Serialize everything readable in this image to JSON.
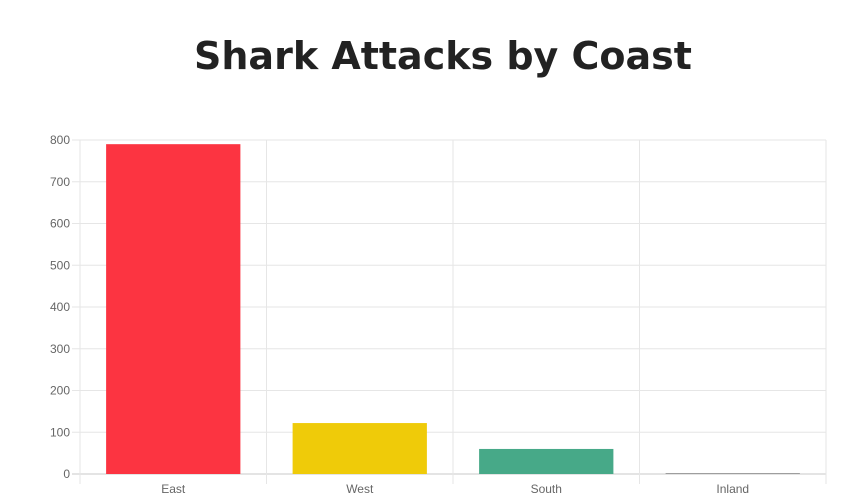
{
  "chart_data": {
    "type": "bar",
    "title": "Shark Attacks by Coast",
    "categories": [
      "East",
      "West",
      "South",
      "Inland"
    ],
    "values": [
      790,
      122,
      60,
      2
    ],
    "colors": [
      "#fc3441",
      "#efcb09",
      "#47a988",
      "#9e9e9e"
    ],
    "ylim": [
      0,
      800
    ],
    "yticks": [
      "0",
      "100",
      "200",
      "300",
      "400",
      "500",
      "600",
      "700",
      "800"
    ],
    "grid": true,
    "legend": "none"
  }
}
